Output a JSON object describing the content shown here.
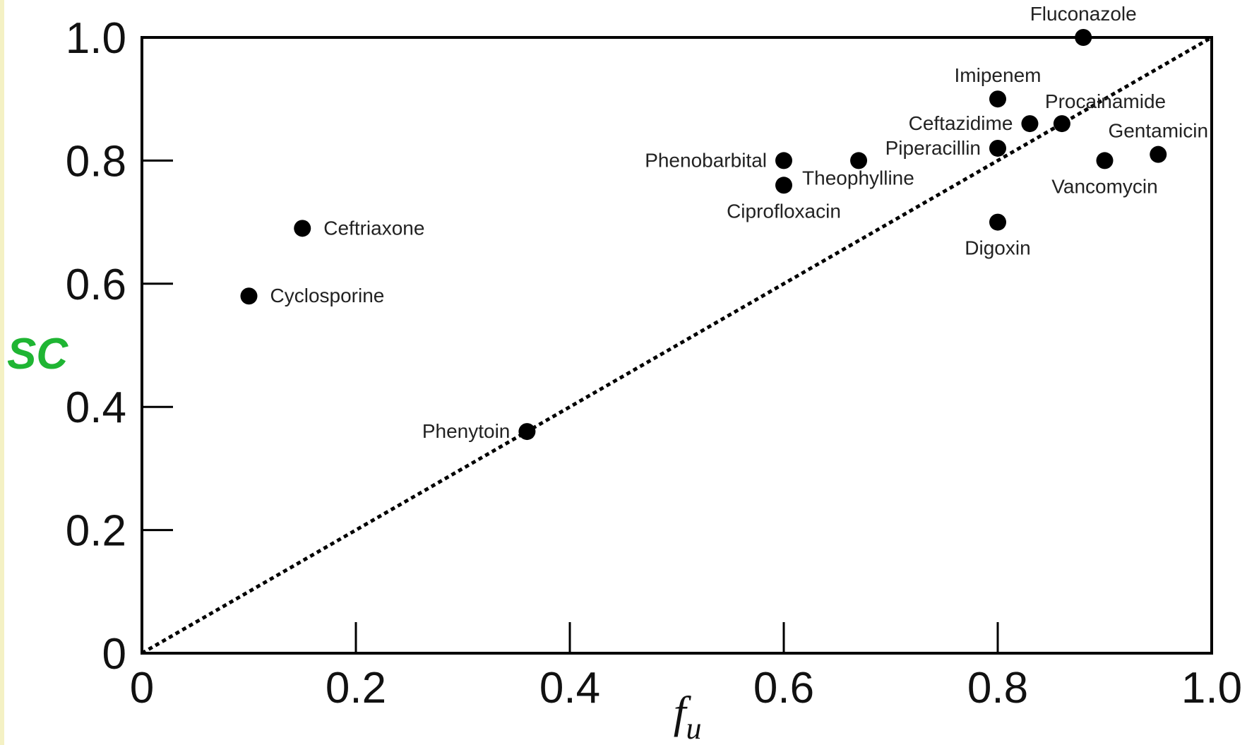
{
  "colors": {
    "background": "#ffffff",
    "left_strip": "#f4f1c4",
    "ylabel": "#1fb533",
    "marker": "#000000",
    "axis": "#000000"
  },
  "chart_data": {
    "type": "scatter",
    "title": "",
    "xlabel": "f",
    "xlabel_subscript": "u",
    "ylabel": "SC",
    "xlim": [
      0,
      1.0
    ],
    "ylim": [
      0,
      1.0
    ],
    "x_ticks": [
      {
        "value": 0,
        "label": "0"
      },
      {
        "value": 0.2,
        "label": "0.2"
      },
      {
        "value": 0.4,
        "label": "0.4"
      },
      {
        "value": 0.6,
        "label": "0.6"
      },
      {
        "value": 0.8,
        "label": "0.8"
      },
      {
        "value": 1.0,
        "label": "1.0"
      }
    ],
    "y_ticks": [
      {
        "value": 0,
        "label": "0"
      },
      {
        "value": 0.2,
        "label": "0.2"
      },
      {
        "value": 0.4,
        "label": "0.4"
      },
      {
        "value": 0.6,
        "label": "0.6"
      },
      {
        "value": 0.8,
        "label": "0.8"
      },
      {
        "value": 1.0,
        "label": "1.0"
      }
    ],
    "grid": false,
    "legend": "none",
    "reference_line": {
      "style": "dotted",
      "from": [
        0,
        0
      ],
      "to": [
        1.0,
        1.0
      ]
    },
    "points": [
      {
        "name": "Fluconazole",
        "x": 0.88,
        "y": 1.0,
        "label_pos": "above"
      },
      {
        "name": "Imipenem",
        "x": 0.8,
        "y": 0.9,
        "label_pos": "above"
      },
      {
        "name": "Procainamide",
        "x": 0.86,
        "y": 0.86,
        "label_pos": "above-right"
      },
      {
        "name": "Ceftazidime",
        "x": 0.83,
        "y": 0.86,
        "label_pos": "left"
      },
      {
        "name": "Gentamicin",
        "x": 0.95,
        "y": 0.81,
        "label_pos": "above"
      },
      {
        "name": "Piperacillin",
        "x": 0.8,
        "y": 0.82,
        "label_pos": "left"
      },
      {
        "name": "Vancomycin",
        "x": 0.9,
        "y": 0.8,
        "label_pos": "below"
      },
      {
        "name": "Phenobarbital",
        "x": 0.6,
        "y": 0.8,
        "label_pos": "left"
      },
      {
        "name": "Theophylline",
        "x": 0.67,
        "y": 0.8,
        "label_pos": "below-right"
      },
      {
        "name": "Ciprofloxacin",
        "x": 0.6,
        "y": 0.76,
        "label_pos": "below"
      },
      {
        "name": "Digoxin",
        "x": 0.8,
        "y": 0.7,
        "label_pos": "below"
      },
      {
        "name": "Ceftriaxone",
        "x": 0.15,
        "y": 0.69,
        "label_pos": "right"
      },
      {
        "name": "Cyclosporine",
        "x": 0.1,
        "y": 0.58,
        "label_pos": "right"
      },
      {
        "name": "Phenytoin",
        "x": 0.36,
        "y": 0.36,
        "label_pos": "left"
      }
    ]
  }
}
